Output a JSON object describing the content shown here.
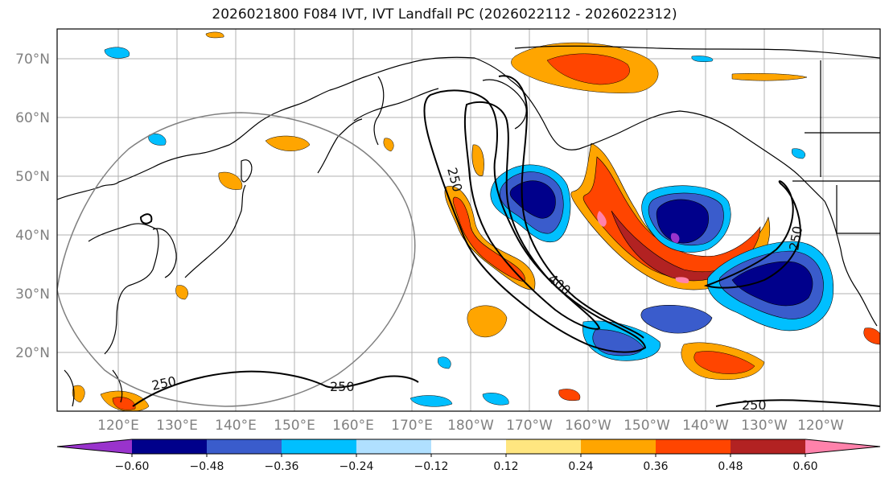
{
  "title": "2026021800 F084 IVT, IVT Landfall PC (2026022112 - 2026022312)",
  "lat_labels": [
    "70°N",
    "60°N",
    "50°N",
    "40°N",
    "30°N",
    "20°N"
  ],
  "lon_labels": [
    "120°E",
    "130°E",
    "140°E",
    "150°E",
    "160°E",
    "170°E",
    "180°W",
    "170°W",
    "160°W",
    "150°W",
    "140°W",
    "130°W",
    "120°W"
  ],
  "colorbar": {
    "ticks": [
      "−0.60",
      "−0.48",
      "−0.36",
      "−0.24",
      "−0.12",
      "0.12",
      "0.24",
      "0.36",
      "0.48",
      "0.60"
    ],
    "colors": [
      "#9933cc",
      "#00008b",
      "#3a5ccc",
      "#00bfff",
      "#b0e0ff",
      "#ffffff",
      "#ffe680",
      "#ffa500",
      "#ff4500",
      "#b22222",
      "#ff82ab"
    ]
  },
  "contour_labels": [
    "250",
    "400",
    "250",
    "250",
    "250",
    "250"
  ]
}
